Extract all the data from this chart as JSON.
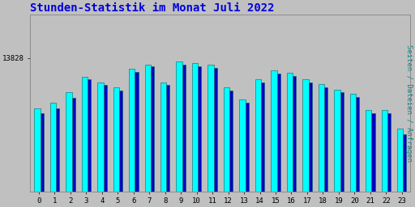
{
  "title": "Stunden-Statistik im Monat Juli 2022",
  "title_color": "#0000dd",
  "title_fontsize": 10,
  "ylabel": "Seiten / Dateien / Anfragen",
  "ylabel_color": "#008888",
  "ylabel_fontsize": 6.5,
  "categories": [
    0,
    1,
    2,
    3,
    4,
    5,
    6,
    7,
    8,
    9,
    10,
    11,
    12,
    13,
    14,
    15,
    16,
    17,
    18,
    19,
    20,
    21,
    22,
    23
  ],
  "bar1_values": [
    13780,
    13785,
    13795,
    13810,
    13805,
    13800,
    13818,
    13822,
    13805,
    13825,
    13823,
    13822,
    13800,
    13788,
    13808,
    13816,
    13814,
    13808,
    13803,
    13798,
    13794,
    13778,
    13778,
    13760
  ],
  "bar2_values": [
    13775,
    13780,
    13790,
    13808,
    13802,
    13797,
    13815,
    13820,
    13802,
    13822,
    13820,
    13819,
    13797,
    13785,
    13805,
    13813,
    13811,
    13805,
    13800,
    13795,
    13791,
    13775,
    13775,
    13755
  ],
  "bar1_color": "#00ffff",
  "bar2_color": "#0000bb",
  "bar_edge_color": "#006666",
  "background_color": "#c0c0c0",
  "plot_bg_color": "#c0c0c0",
  "ytick_value": 13828,
  "ytick_label": "13828",
  "ylim_min": 13700,
  "ylim_max": 13870,
  "bar_width": 0.42,
  "font_family": "monospace"
}
